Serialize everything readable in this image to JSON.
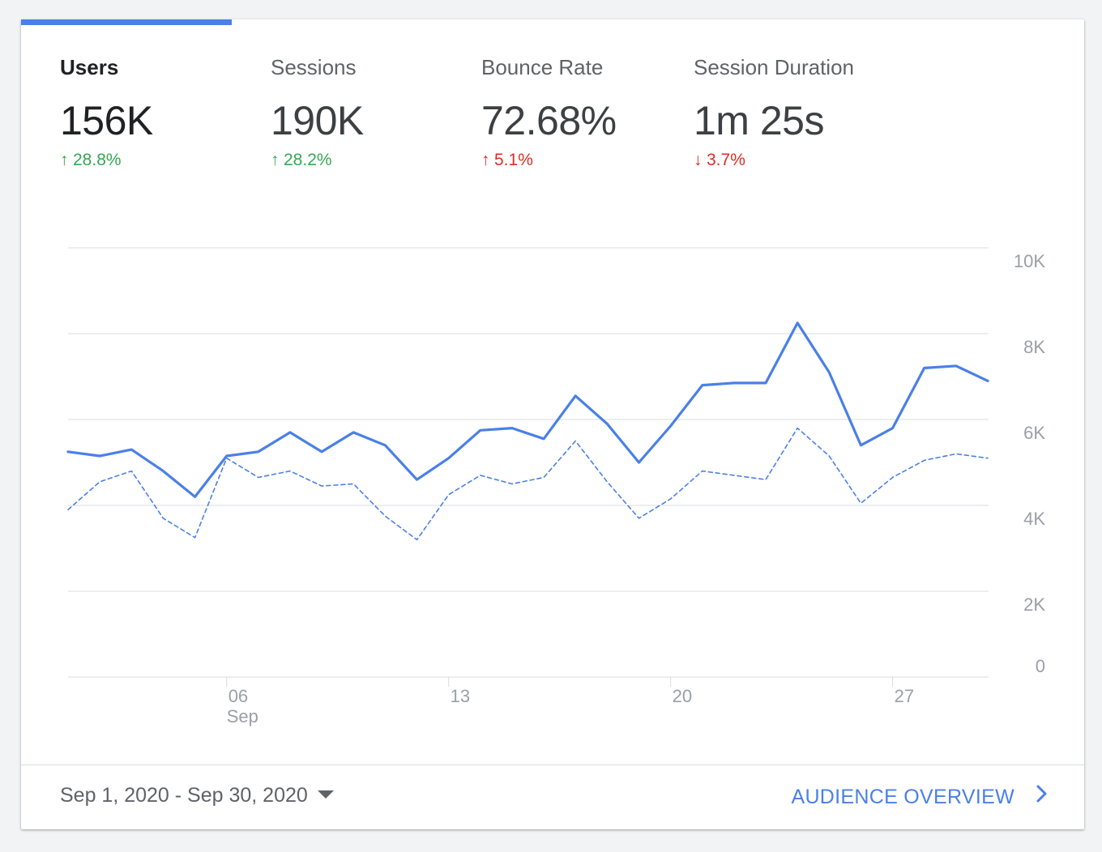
{
  "tabs": [
    {
      "label": "Users",
      "value": "156K",
      "change": "28.8%",
      "direction": "up",
      "change_color": "#34a853",
      "active": true
    },
    {
      "label": "Sessions",
      "value": "190K",
      "change": "28.2%",
      "direction": "up",
      "change_color": "#34a853",
      "active": false
    },
    {
      "label": "Bounce Rate",
      "value": "72.68%",
      "change": "5.1%",
      "direction": "up",
      "change_color": "#d93025",
      "active": false
    },
    {
      "label": "Session Duration",
      "value": "1m 25s",
      "change": "3.7%",
      "direction": "down",
      "change_color": "#d93025",
      "active": false
    }
  ],
  "footer": {
    "date_range": "Sep 1, 2020 - Sep 30, 2020",
    "link_label": "AUDIENCE OVERVIEW",
    "link_icon": "chevron-right-icon",
    "caret_icon": "dropdown-caret-icon"
  },
  "colors": {
    "accent": "#4a80e8",
    "positive": "#34a853",
    "negative": "#d93025"
  },
  "chart_data": {
    "type": "line",
    "x": [
      1,
      2,
      3,
      4,
      5,
      6,
      7,
      8,
      9,
      10,
      11,
      12,
      13,
      14,
      15,
      16,
      17,
      18,
      19,
      20,
      21,
      22,
      23,
      24,
      25,
      26,
      27,
      28,
      29,
      30
    ],
    "x_tick_labels": [
      {
        "x": 6,
        "label": "06",
        "sublabel": "Sep"
      },
      {
        "x": 13,
        "label": "13"
      },
      {
        "x": 20,
        "label": "20"
      },
      {
        "x": 27,
        "label": "27"
      }
    ],
    "y_ticks": [
      0,
      2000,
      4000,
      6000,
      8000,
      10000
    ],
    "y_tick_labels": [
      "0",
      "2K",
      "4K",
      "6K",
      "8K",
      "10K"
    ],
    "ylim": [
      0,
      10000
    ],
    "grid": true,
    "series": [
      {
        "style": "solid",
        "values": [
          5250,
          5150,
          5300,
          4800,
          4200,
          5150,
          5250,
          5700,
          5250,
          5700,
          5400,
          4600,
          5100,
          5750,
          5800,
          5550,
          6550,
          5900,
          5000,
          5850,
          6800,
          6850,
          6850,
          8250,
          7100,
          5400,
          5800,
          7200,
          7250,
          6900
        ]
      },
      {
        "style": "dashed",
        "values": [
          3900,
          4550,
          4800,
          3700,
          3250,
          5100,
          4650,
          4800,
          4450,
          4500,
          3750,
          3200,
          4250,
          4700,
          4500,
          4650,
          5500,
          4550,
          3700,
          4150,
          4800,
          4700,
          4600,
          5800,
          5150,
          4050,
          4650,
          5050,
          5200,
          5100
        ]
      }
    ]
  }
}
